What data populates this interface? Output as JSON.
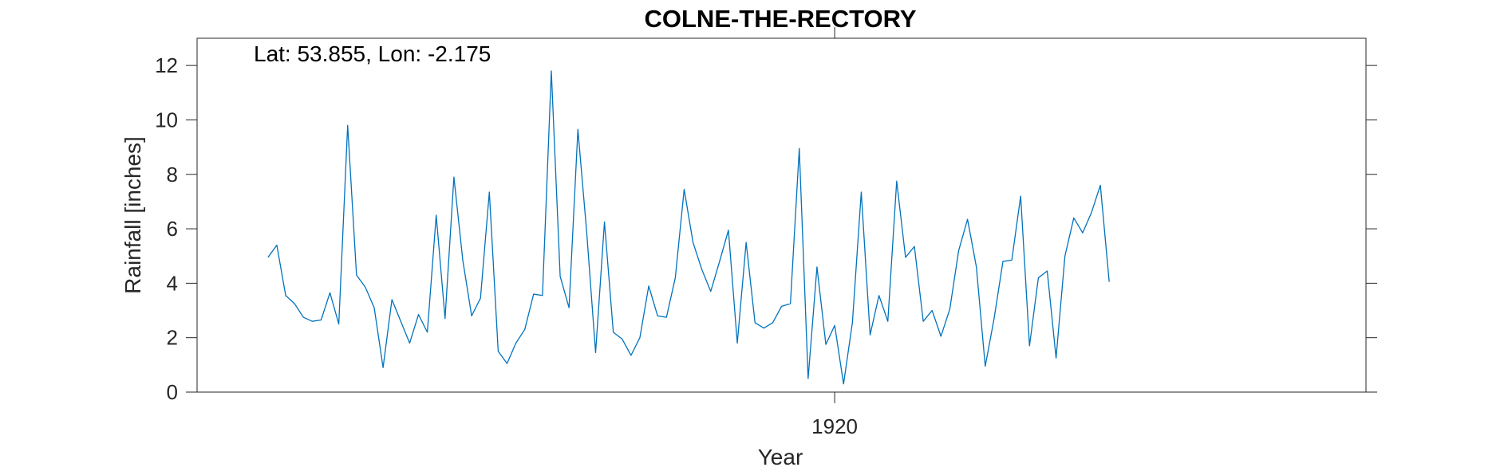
{
  "chart_data": {
    "type": "line",
    "title": "COLNE-THE-RECTORY",
    "annotation": "Lat: 53.855, Lon: -2.175",
    "xlabel": "Year",
    "ylabel": "Rainfall [inches]",
    "ylim": [
      0,
      13
    ],
    "yticks": [
      0,
      2,
      4,
      6,
      8,
      10,
      12
    ],
    "xlim": [
      1914.0,
      1925.0
    ],
    "xticks": [
      {
        "value": 1920,
        "label": "1920"
      }
    ],
    "grid": false,
    "colors": {
      "line": "#0072BD",
      "axis": "#262626"
    },
    "series": [
      {
        "name": "Rainfall",
        "x_start": 1914.667,
        "x_step": 0.0833333,
        "values": [
          4.95,
          5.4,
          3.55,
          3.25,
          2.75,
          2.6,
          2.65,
          3.65,
          2.5,
          9.8,
          4.3,
          3.85,
          3.1,
          0.9,
          3.4,
          2.6,
          1.8,
          2.85,
          2.2,
          6.5,
          2.7,
          7.9,
          4.85,
          2.8,
          3.45,
          7.35,
          1.5,
          1.05,
          1.8,
          2.3,
          3.6,
          3.55,
          11.8,
          4.25,
          3.1,
          9.65,
          5.85,
          1.45,
          6.25,
          2.2,
          1.95,
          1.35,
          2.0,
          3.9,
          2.8,
          2.75,
          4.2,
          7.45,
          5.5,
          4.5,
          3.7,
          4.8,
          5.95,
          1.8,
          5.5,
          2.55,
          2.35,
          2.55,
          3.15,
          3.25,
          8.95,
          0.5,
          4.6,
          1.75,
          2.45,
          0.3,
          2.55,
          7.35,
          2.1,
          3.55,
          2.6,
          7.75,
          4.95,
          5.35,
          2.6,
          3.0,
          2.05,
          3.05,
          5.2,
          6.35,
          4.6,
          0.95,
          2.7,
          4.8,
          4.85,
          7.2,
          1.7,
          4.2,
          4.45,
          1.25,
          5.0,
          6.4,
          5.85,
          6.6,
          7.6,
          4.05
        ]
      }
    ]
  }
}
